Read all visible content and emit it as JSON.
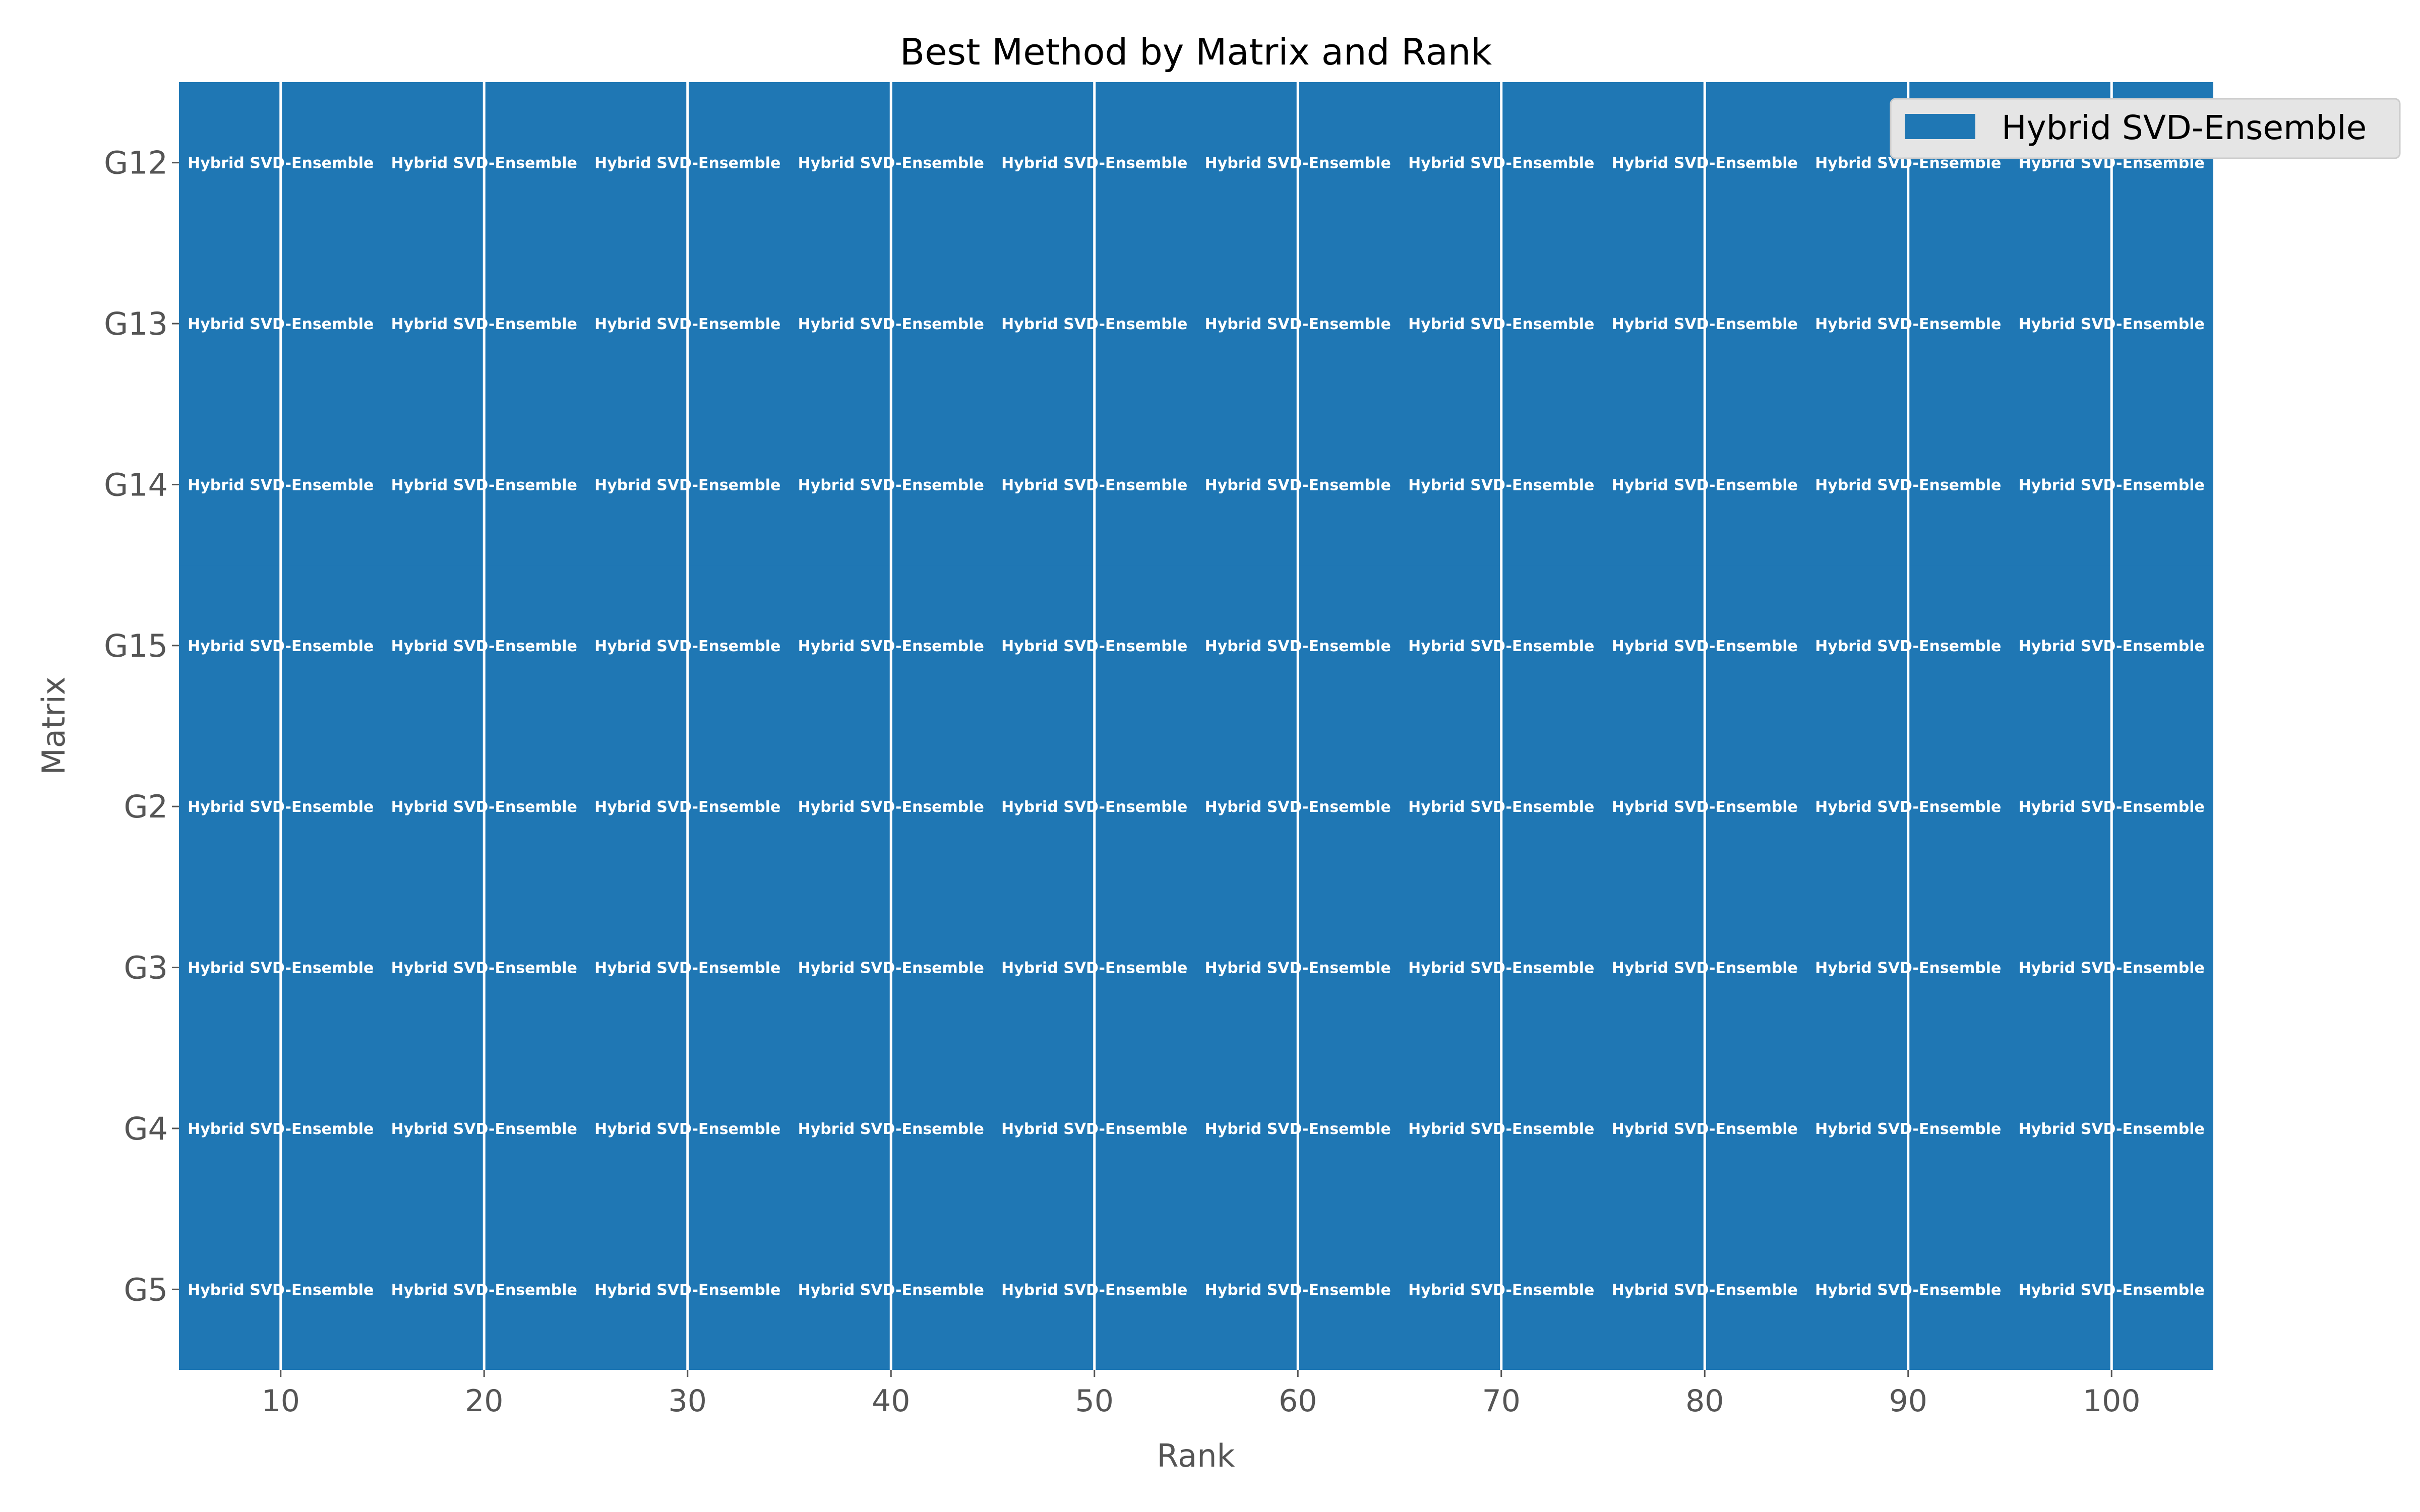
{
  "chart_data": {
    "type": "heatmap",
    "title": "Best Method by Matrix and Rank",
    "xlabel": "Rank",
    "ylabel": "Matrix",
    "x": [
      10,
      20,
      30,
      40,
      50,
      60,
      70,
      80,
      90,
      100
    ],
    "xlim": [
      5,
      105
    ],
    "xticks": [
      "10",
      "20",
      "30",
      "40",
      "50",
      "60",
      "70",
      "80",
      "90",
      "100"
    ],
    "y": [
      "G12",
      "G13",
      "G14",
      "G15",
      "G2",
      "G3",
      "G4",
      "G5"
    ],
    "values": [
      [
        "Hybrid SVD-Ensemble",
        "Hybrid SVD-Ensemble",
        "Hybrid SVD-Ensemble",
        "Hybrid SVD-Ensemble",
        "Hybrid SVD-Ensemble",
        "Hybrid SVD-Ensemble",
        "Hybrid SVD-Ensemble",
        "Hybrid SVD-Ensemble",
        "Hybrid SVD-Ensemble",
        "Hybrid SVD-Ensemble"
      ],
      [
        "Hybrid SVD-Ensemble",
        "Hybrid SVD-Ensemble",
        "Hybrid SVD-Ensemble",
        "Hybrid SVD-Ensemble",
        "Hybrid SVD-Ensemble",
        "Hybrid SVD-Ensemble",
        "Hybrid SVD-Ensemble",
        "Hybrid SVD-Ensemble",
        "Hybrid SVD-Ensemble",
        "Hybrid SVD-Ensemble"
      ],
      [
        "Hybrid SVD-Ensemble",
        "Hybrid SVD-Ensemble",
        "Hybrid SVD-Ensemble",
        "Hybrid SVD-Ensemble",
        "Hybrid SVD-Ensemble",
        "Hybrid SVD-Ensemble",
        "Hybrid SVD-Ensemble",
        "Hybrid SVD-Ensemble",
        "Hybrid SVD-Ensemble",
        "Hybrid SVD-Ensemble"
      ],
      [
        "Hybrid SVD-Ensemble",
        "Hybrid SVD-Ensemble",
        "Hybrid SVD-Ensemble",
        "Hybrid SVD-Ensemble",
        "Hybrid SVD-Ensemble",
        "Hybrid SVD-Ensemble",
        "Hybrid SVD-Ensemble",
        "Hybrid SVD-Ensemble",
        "Hybrid SVD-Ensemble",
        "Hybrid SVD-Ensemble"
      ],
      [
        "Hybrid SVD-Ensemble",
        "Hybrid SVD-Ensemble",
        "Hybrid SVD-Ensemble",
        "Hybrid SVD-Ensemble",
        "Hybrid SVD-Ensemble",
        "Hybrid SVD-Ensemble",
        "Hybrid SVD-Ensemble",
        "Hybrid SVD-Ensemble",
        "Hybrid SVD-Ensemble",
        "Hybrid SVD-Ensemble"
      ],
      [
        "Hybrid SVD-Ensemble",
        "Hybrid SVD-Ensemble",
        "Hybrid SVD-Ensemble",
        "Hybrid SVD-Ensemble",
        "Hybrid SVD-Ensemble",
        "Hybrid SVD-Ensemble",
        "Hybrid SVD-Ensemble",
        "Hybrid SVD-Ensemble",
        "Hybrid SVD-Ensemble",
        "Hybrid SVD-Ensemble"
      ],
      [
        "Hybrid SVD-Ensemble",
        "Hybrid SVD-Ensemble",
        "Hybrid SVD-Ensemble",
        "Hybrid SVD-Ensemble",
        "Hybrid SVD-Ensemble",
        "Hybrid SVD-Ensemble",
        "Hybrid SVD-Ensemble",
        "Hybrid SVD-Ensemble",
        "Hybrid SVD-Ensemble",
        "Hybrid SVD-Ensemble"
      ],
      [
        "Hybrid SVD-Ensemble",
        "Hybrid SVD-Ensemble",
        "Hybrid SVD-Ensemble",
        "Hybrid SVD-Ensemble",
        "Hybrid SVD-Ensemble",
        "Hybrid SVD-Ensemble",
        "Hybrid SVD-Ensemble",
        "Hybrid SVD-Ensemble",
        "Hybrid SVD-Ensemble",
        "Hybrid SVD-Ensemble"
      ]
    ],
    "legend": {
      "placement": "top-right",
      "entries": [
        {
          "name": "Hybrid SVD-Ensemble",
          "color": "#1f77b4"
        }
      ]
    },
    "grid": true,
    "colors": {
      "method_fill": "#1f77b4",
      "grid": "#ffffff",
      "cell_text": "#ffffff",
      "text": "#000000",
      "axis_label": "#555555",
      "legend_bg": "#e5e5e5",
      "legend_border": "#cccccc"
    }
  }
}
